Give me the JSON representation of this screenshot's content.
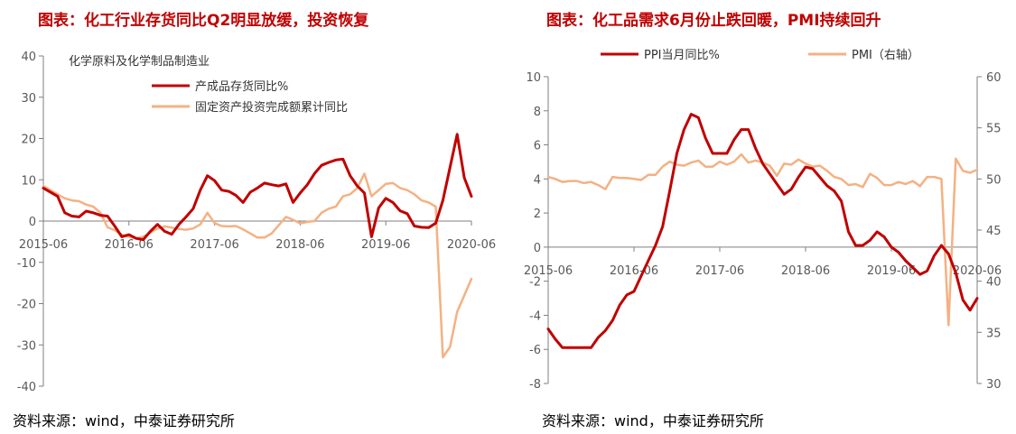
{
  "chart_data": [
    {
      "type": "line",
      "title": "图表：化工行业存货同比Q2明显放缓，投资恢复",
      "subtitle": "化学原料及化学制品制造业",
      "source": "资料来源：wind，中泰证券研究所",
      "x_ticks": [
        "2015-06",
        "2016-06",
        "2017-06",
        "2018-06",
        "2019-06",
        "2020-06"
      ],
      "x_range": [
        "2015-06",
        "2020-06"
      ],
      "ylim": [
        -40,
        40
      ],
      "y_ticks": [
        -40,
        -30,
        -20,
        -10,
        0,
        10,
        20,
        30,
        40
      ],
      "legend_position": "top-center",
      "colors": {
        "产成品存货同比%": "#c00000",
        "固定资产投资完成额累计同比": "#f4b183"
      },
      "series": [
        {
          "name": "产成品存货同比%",
          "points": [
            [
              "2015-06",
              8
            ],
            [
              "2015-08",
              6
            ],
            [
              "2015-09",
              2
            ],
            [
              "2015-10",
              1.2
            ],
            [
              "2015-11",
              1
            ],
            [
              "2015-12",
              2.4
            ],
            [
              "2016-01",
              2
            ],
            [
              "2016-02",
              1.4
            ],
            [
              "2016-03",
              1.2
            ],
            [
              "2016-04",
              -1.2
            ],
            [
              "2016-05",
              -3.8
            ],
            [
              "2016-06",
              -3.3
            ],
            [
              "2016-07",
              -4.2
            ],
            [
              "2016-08",
              -4.5
            ],
            [
              "2016-09",
              -2.5
            ],
            [
              "2016-10",
              -0.8
            ],
            [
              "2016-11",
              -2.5
            ],
            [
              "2016-12",
              -3.2
            ],
            [
              "2017-01",
              -0.8
            ],
            [
              "2017-02",
              1
            ],
            [
              "2017-03",
              3
            ],
            [
              "2017-04",
              7.5
            ],
            [
              "2017-05",
              11
            ],
            [
              "2017-06",
              9.8
            ],
            [
              "2017-07",
              7.5
            ],
            [
              "2017-08",
              7.2
            ],
            [
              "2017-09",
              6.2
            ],
            [
              "2017-10",
              4.5
            ],
            [
              "2017-11",
              7
            ],
            [
              "2017-12",
              8
            ],
            [
              "2018-01",
              9.2
            ],
            [
              "2018-02",
              8.8
            ],
            [
              "2018-03",
              8.5
            ],
            [
              "2018-04",
              9
            ],
            [
              "2018-05",
              4.5
            ],
            [
              "2018-06",
              6.8
            ],
            [
              "2018-07",
              8.8
            ],
            [
              "2018-08",
              11.5
            ],
            [
              "2018-09",
              13.5
            ],
            [
              "2018-10",
              14.2
            ],
            [
              "2018-11",
              14.8
            ],
            [
              "2018-12",
              15
            ],
            [
              "2019-01",
              11
            ],
            [
              "2019-02",
              8.5
            ],
            [
              "2019-03",
              6.8
            ],
            [
              "2019-04",
              -3.8
            ],
            [
              "2019-05",
              3.2
            ],
            [
              "2019-06",
              5.5
            ],
            [
              "2019-07",
              4.5
            ],
            [
              "2019-08",
              2.5
            ],
            [
              "2019-09",
              1.8
            ],
            [
              "2019-10",
              -1.2
            ],
            [
              "2019-11",
              -1.5
            ],
            [
              "2019-12",
              -1.6
            ],
            [
              "2020-01",
              -0.5
            ],
            [
              "2020-02",
              5
            ],
            [
              "2020-03",
              13
            ],
            [
              "2020-04",
              21
            ],
            [
              "2020-05",
              10.5
            ],
            [
              "2020-06",
              6
            ]
          ]
        },
        {
          "name": "固定资产投资完成额累计同比",
          "points": [
            [
              "2015-06",
              8.5
            ],
            [
              "2015-08",
              6.5
            ],
            [
              "2015-09",
              5.5
            ],
            [
              "2015-10",
              5
            ],
            [
              "2015-11",
              4.8
            ],
            [
              "2015-12",
              4
            ],
            [
              "2016-01",
              3.5
            ],
            [
              "2016-02",
              2
            ],
            [
              "2016-03",
              -1.5
            ],
            [
              "2016-04",
              -2.2
            ],
            [
              "2016-05",
              -3.3
            ],
            [
              "2016-06",
              -3.8
            ],
            [
              "2016-07",
              -4.2
            ],
            [
              "2016-08",
              -3.8
            ],
            [
              "2016-09",
              -2.8
            ],
            [
              "2016-10",
              -1.8
            ],
            [
              "2016-11",
              -1.3
            ],
            [
              "2016-12",
              -1.6
            ],
            [
              "2017-01",
              -1.9
            ],
            [
              "2017-02",
              -2.1
            ],
            [
              "2017-03",
              -1.8
            ],
            [
              "2017-04",
              -0.8
            ],
            [
              "2017-05",
              2
            ],
            [
              "2017-06",
              -0.5
            ],
            [
              "2017-07",
              -1.2
            ],
            [
              "2017-08",
              -1.3
            ],
            [
              "2017-09",
              -1.2
            ],
            [
              "2017-10",
              -2
            ],
            [
              "2017-11",
              -3
            ],
            [
              "2017-12",
              -4
            ],
            [
              "2018-01",
              -4
            ],
            [
              "2018-02",
              -3
            ],
            [
              "2018-03",
              -1
            ],
            [
              "2018-04",
              1
            ],
            [
              "2018-05",
              0.3
            ],
            [
              "2018-06",
              -0.6
            ],
            [
              "2018-07",
              -0.2
            ],
            [
              "2018-08",
              0
            ],
            [
              "2018-09",
              2
            ],
            [
              "2018-10",
              3
            ],
            [
              "2018-11",
              3.5
            ],
            [
              "2018-12",
              6
            ],
            [
              "2019-01",
              6.5
            ],
            [
              "2019-02",
              8
            ],
            [
              "2019-03",
              11.5
            ],
            [
              "2019-04",
              6
            ],
            [
              "2019-05",
              7.5
            ],
            [
              "2019-06",
              9
            ],
            [
              "2019-07",
              9.2
            ],
            [
              "2019-08",
              8
            ],
            [
              "2019-09",
              7.5
            ],
            [
              "2019-10",
              6.5
            ],
            [
              "2019-11",
              5
            ],
            [
              "2019-12",
              4.5
            ],
            [
              "2020-01",
              3.5
            ],
            [
              "2020-02",
              -33
            ],
            [
              "2020-03",
              -30.5
            ],
            [
              "2020-04",
              -22
            ],
            [
              "2020-05",
              -18
            ],
            [
              "2020-06",
              -14
            ]
          ]
        }
      ]
    },
    {
      "type": "line",
      "title": "图表：化工品需求6月份止跌回暖，PMI持续回升",
      "source": "资料来源：wind，中泰证券研究所",
      "x_ticks": [
        "2015-06",
        "2016-06",
        "2017-06",
        "2018-06",
        "2019-06",
        "2020-06"
      ],
      "x_range": [
        "2015-06",
        "2020-06"
      ],
      "ylim": [
        -8,
        10
      ],
      "y_ticks": [
        -8,
        -6,
        -4,
        -2,
        0,
        2,
        4,
        6,
        8,
        10
      ],
      "y2lim": [
        30,
        60
      ],
      "y2_ticks": [
        30,
        35,
        40,
        45,
        50,
        55,
        60
      ],
      "legend_position": "top",
      "colors": {
        "PPI当月同比%": "#c00000",
        "PMI（右轴）": "#f4b183"
      },
      "series": [
        {
          "name": "PPI当月同比%",
          "axis": "left",
          "points": [
            [
              "2015-06",
              -4.8
            ],
            [
              "2015-07",
              -5.4
            ],
            [
              "2015-08",
              -5.9
            ],
            [
              "2015-09",
              -5.9
            ],
            [
              "2015-10",
              -5.9
            ],
            [
              "2015-11",
              -5.9
            ],
            [
              "2015-12",
              -5.9
            ],
            [
              "2016-01",
              -5.3
            ],
            [
              "2016-02",
              -4.9
            ],
            [
              "2016-03",
              -4.3
            ],
            [
              "2016-04",
              -3.4
            ],
            [
              "2016-05",
              -2.8
            ],
            [
              "2016-06",
              -2.6
            ],
            [
              "2016-07",
              -1.7
            ],
            [
              "2016-08",
              -0.8
            ],
            [
              "2016-09",
              0.1
            ],
            [
              "2016-10",
              1.2
            ],
            [
              "2016-11",
              3.3
            ],
            [
              "2016-12",
              5.5
            ],
            [
              "2017-01",
              6.9
            ],
            [
              "2017-02",
              7.8
            ],
            [
              "2017-03",
              7.6
            ],
            [
              "2017-04",
              6.4
            ],
            [
              "2017-05",
              5.5
            ],
            [
              "2017-06",
              5.5
            ],
            [
              "2017-07",
              5.5
            ],
            [
              "2017-08",
              6.3
            ],
            [
              "2017-09",
              6.9
            ],
            [
              "2017-10",
              6.9
            ],
            [
              "2017-11",
              5.8
            ],
            [
              "2017-12",
              4.9
            ],
            [
              "2018-01",
              4.3
            ],
            [
              "2018-02",
              3.7
            ],
            [
              "2018-03",
              3.1
            ],
            [
              "2018-04",
              3.4
            ],
            [
              "2018-05",
              4.1
            ],
            [
              "2018-06",
              4.7
            ],
            [
              "2018-07",
              4.6
            ],
            [
              "2018-08",
              4.1
            ],
            [
              "2018-09",
              3.6
            ],
            [
              "2018-10",
              3.3
            ],
            [
              "2018-11",
              2.7
            ],
            [
              "2018-12",
              0.9
            ],
            [
              "2019-01",
              0.1
            ],
            [
              "2019-02",
              0.1
            ],
            [
              "2019-03",
              0.4
            ],
            [
              "2019-04",
              0.9
            ],
            [
              "2019-05",
              0.6
            ],
            [
              "2019-06",
              0
            ],
            [
              "2019-07",
              -0.3
            ],
            [
              "2019-08",
              -0.8
            ],
            [
              "2019-09",
              -1.2
            ],
            [
              "2019-10",
              -1.6
            ],
            [
              "2019-11",
              -1.4
            ],
            [
              "2019-12",
              -0.5
            ],
            [
              "2020-01",
              0.1
            ],
            [
              "2020-02",
              -0.4
            ],
            [
              "2020-03",
              -1.5
            ],
            [
              "2020-04",
              -3.1
            ],
            [
              "2020-05",
              -3.7
            ],
            [
              "2020-06",
              -3
            ]
          ]
        },
        {
          "name": "PMI（右轴）",
          "axis": "right",
          "points": [
            [
              "2015-06",
              50.2
            ],
            [
              "2015-07",
              50
            ],
            [
              "2015-08",
              49.7
            ],
            [
              "2015-09",
              49.8
            ],
            [
              "2015-10",
              49.8
            ],
            [
              "2015-11",
              49.6
            ],
            [
              "2015-12",
              49.7
            ],
            [
              "2016-01",
              49.4
            ],
            [
              "2016-02",
              49
            ],
            [
              "2016-03",
              50.2
            ],
            [
              "2016-04",
              50.1
            ],
            [
              "2016-05",
              50.1
            ],
            [
              "2016-06",
              50
            ],
            [
              "2016-07",
              49.9
            ],
            [
              "2016-08",
              50.4
            ],
            [
              "2016-09",
              50.4
            ],
            [
              "2016-10",
              51.2
            ],
            [
              "2016-11",
              51.7
            ],
            [
              "2016-12",
              51.4
            ],
            [
              "2017-01",
              51.3
            ],
            [
              "2017-02",
              51.6
            ],
            [
              "2017-03",
              51.8
            ],
            [
              "2017-04",
              51.2
            ],
            [
              "2017-05",
              51.2
            ],
            [
              "2017-06",
              51.7
            ],
            [
              "2017-07",
              51.4
            ],
            [
              "2017-08",
              51.7
            ],
            [
              "2017-09",
              52.4
            ],
            [
              "2017-10",
              51.6
            ],
            [
              "2017-11",
              51.8
            ],
            [
              "2017-12",
              51.6
            ],
            [
              "2018-01",
              51.3
            ],
            [
              "2018-02",
              50.3
            ],
            [
              "2018-03",
              51.5
            ],
            [
              "2018-04",
              51.4
            ],
            [
              "2018-05",
              51.9
            ],
            [
              "2018-06",
              51.5
            ],
            [
              "2018-07",
              51.2
            ],
            [
              "2018-08",
              51.3
            ],
            [
              "2018-09",
              50.8
            ],
            [
              "2018-10",
              50.2
            ],
            [
              "2018-11",
              50
            ],
            [
              "2018-12",
              49.4
            ],
            [
              "2019-01",
              49.5
            ],
            [
              "2019-02",
              49.2
            ],
            [
              "2019-03",
              50.5
            ],
            [
              "2019-04",
              50.1
            ],
            [
              "2019-05",
              49.4
            ],
            [
              "2019-06",
              49.4
            ],
            [
              "2019-07",
              49.7
            ],
            [
              "2019-08",
              49.5
            ],
            [
              "2019-09",
              49.8
            ],
            [
              "2019-10",
              49.3
            ],
            [
              "2019-11",
              50.2
            ],
            [
              "2019-12",
              50.2
            ],
            [
              "2020-01",
              50
            ],
            [
              "2020-02",
              35.7
            ],
            [
              "2020-03",
              52
            ],
            [
              "2020-04",
              50.8
            ],
            [
              "2020-05",
              50.6
            ],
            [
              "2020-06",
              50.9
            ]
          ]
        }
      ]
    }
  ]
}
